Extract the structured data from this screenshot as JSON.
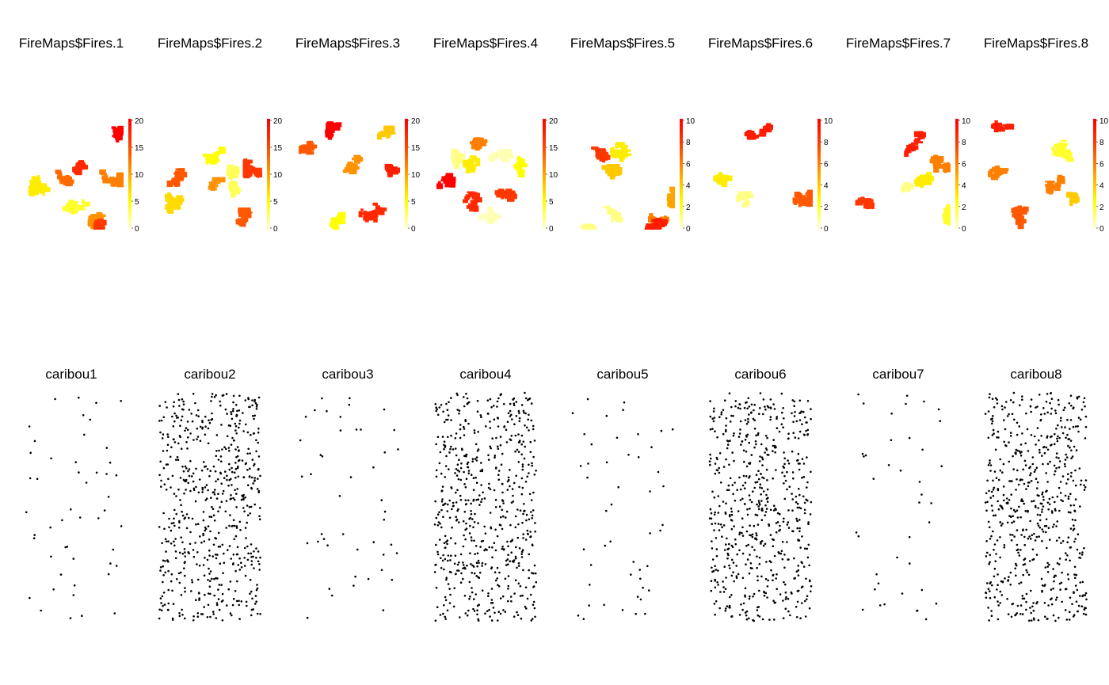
{
  "fire_maps": {
    "titles": [
      "FireMaps$Fires.1",
      "FireMaps$Fires.2",
      "FireMaps$Fires.3",
      "FireMaps$Fires.4",
      "FireMaps$Fires.5",
      "FireMaps$Fires.6",
      "FireMaps$Fires.7",
      "FireMaps$Fires.8"
    ],
    "legend_ticks": [
      [
        "0",
        "5",
        "10",
        "15",
        "20"
      ],
      [
        "0",
        "5",
        "10",
        "15",
        "20"
      ],
      [
        "0",
        "5",
        "10",
        "15",
        "20"
      ],
      [
        "0",
        "5",
        "10",
        "15",
        "20"
      ],
      [
        "0",
        "2",
        "4",
        "6",
        "8",
        "10"
      ],
      [
        "0",
        "2",
        "4",
        "6",
        "8",
        "10"
      ],
      [
        "0",
        "2",
        "4",
        "6",
        "8",
        "10"
      ],
      [
        "0",
        "2",
        "4",
        "6",
        "8",
        "10"
      ]
    ],
    "color_scale": [
      "#ffffe0",
      "#ffff00",
      "#ffa500",
      "#ff4500",
      "#ff0000"
    ]
  },
  "caribou": {
    "titles": [
      "caribou1",
      "caribou2",
      "caribou3",
      "caribou4",
      "caribou5",
      "caribou6",
      "caribou7",
      "caribou8"
    ],
    "point_color": "#000000"
  },
  "chart_data": {
    "type": "heatmap",
    "panels": [
      {
        "title": "FireMaps$Fires.1",
        "type": "heatmap",
        "zlim": [
          0,
          20
        ],
        "patches": [
          {
            "x": 0.95,
            "y": 0.9,
            "value": 20
          },
          {
            "x": 0.55,
            "y": 0.65,
            "value": 17
          },
          {
            "x": 0.35,
            "y": 0.55,
            "value": 13
          },
          {
            "x": 0.2,
            "y": 0.4,
            "value": 6
          },
          {
            "x": 0.48,
            "y": 0.18,
            "value": 4
          },
          {
            "x": 0.72,
            "y": 0.15,
            "value": 11
          },
          {
            "x": 0.78,
            "y": 0.08,
            "value": 16
          },
          {
            "x": 0.9,
            "y": 0.45,
            "value": 12
          }
        ]
      },
      {
        "title": "FireMaps$Fires.2",
        "type": "heatmap",
        "zlim": [
          0,
          20
        ],
        "patches": [
          {
            "x": 0.55,
            "y": 0.75,
            "value": 5
          },
          {
            "x": 0.7,
            "y": 0.6,
            "value": 3
          },
          {
            "x": 0.2,
            "y": 0.55,
            "value": 14
          },
          {
            "x": 0.18,
            "y": 0.3,
            "value": 7
          },
          {
            "x": 0.55,
            "y": 0.38,
            "value": 11
          },
          {
            "x": 0.68,
            "y": 0.35,
            "value": 3
          },
          {
            "x": 0.8,
            "y": 0.1,
            "value": 14
          },
          {
            "x": 0.95,
            "y": 0.55,
            "value": 16
          }
        ]
      },
      {
        "title": "FireMaps$Fires.3",
        "type": "heatmap",
        "zlim": [
          0,
          20
        ],
        "patches": [
          {
            "x": 0.1,
            "y": 0.82,
            "value": 14
          },
          {
            "x": 0.35,
            "y": 0.95,
            "value": 20
          },
          {
            "x": 0.8,
            "y": 0.85,
            "value": 8
          },
          {
            "x": 0.5,
            "y": 0.65,
            "value": 11
          },
          {
            "x": 0.85,
            "y": 0.58,
            "value": 18
          },
          {
            "x": 0.72,
            "y": 0.22,
            "value": 17
          },
          {
            "x": 0.35,
            "y": 0.1,
            "value": 5
          }
        ]
      },
      {
        "title": "FireMaps$Fires.4",
        "type": "heatmap",
        "zlim": [
          0,
          20
        ],
        "patches": [
          {
            "x": 0.35,
            "y": 0.85,
            "value": 12
          },
          {
            "x": 0.15,
            "y": 0.65,
            "value": 2
          },
          {
            "x": 0.4,
            "y": 0.65,
            "value": 6
          },
          {
            "x": 0.85,
            "y": 0.62,
            "value": 5
          },
          {
            "x": 0.55,
            "y": 0.7,
            "value": 1
          },
          {
            "x": 0.12,
            "y": 0.45,
            "value": 20
          },
          {
            "x": 0.35,
            "y": 0.25,
            "value": 17
          },
          {
            "x": 0.7,
            "y": 0.35,
            "value": 16
          },
          {
            "x": 0.55,
            "y": 0.2,
            "value": 1
          }
        ]
      },
      {
        "title": "FireMaps$Fires.5",
        "type": "heatmap",
        "zlim": [
          0,
          10
        ],
        "patches": [
          {
            "x": 0.15,
            "y": 0.75,
            "value": 8
          },
          {
            "x": 0.5,
            "y": 0.7,
            "value": 3
          },
          {
            "x": 0.35,
            "y": 0.5,
            "value": 4
          },
          {
            "x": 0.9,
            "y": 0.35,
            "value": 5
          },
          {
            "x": 0.3,
            "y": 0.2,
            "value": 1
          },
          {
            "x": 0.75,
            "y": 0.1,
            "value": 6
          },
          {
            "x": 0.8,
            "y": 0.05,
            "value": 9
          },
          {
            "x": 0.05,
            "y": 0.05,
            "value": 1
          }
        ]
      },
      {
        "title": "FireMaps$Fires.6",
        "type": "heatmap",
        "zlim": [
          0,
          10
        ],
        "patches": [
          {
            "x": 0.4,
            "y": 0.9,
            "value": 9
          },
          {
            "x": 0.1,
            "y": 0.5,
            "value": 3
          },
          {
            "x": 0.85,
            "y": 0.35,
            "value": 7
          },
          {
            "x": 0.35,
            "y": 0.25,
            "value": 1
          }
        ]
      },
      {
        "title": "FireMaps$Fires.7",
        "type": "heatmap",
        "zlim": [
          0,
          10
        ],
        "patches": [
          {
            "x": 0.62,
            "y": 0.8,
            "value": 9
          },
          {
            "x": 0.2,
            "y": 0.2,
            "value": 8
          },
          {
            "x": 0.85,
            "y": 0.6,
            "value": 6
          },
          {
            "x": 0.68,
            "y": 0.5,
            "value": 3
          },
          {
            "x": 0.95,
            "y": 0.15,
            "value": 2
          },
          {
            "x": 0.55,
            "y": 0.45,
            "value": 1
          }
        ]
      },
      {
        "title": "FireMaps$Fires.8",
        "type": "heatmap",
        "zlim": [
          0,
          10
        ],
        "patches": [
          {
            "x": 0.65,
            "y": 0.72,
            "value": 2
          },
          {
            "x": 0.6,
            "y": 0.4,
            "value": 6
          },
          {
            "x": 0.25,
            "y": 0.12,
            "value": 7
          },
          {
            "x": 0.85,
            "y": 0.35,
            "value": 4
          },
          {
            "x": 0.15,
            "y": 0.55,
            "value": 6
          },
          {
            "x": 0.05,
            "y": 0.95,
            "value": 9
          }
        ]
      },
      {
        "title": "caribou1",
        "type": "scatter",
        "n": 49,
        "xlim": [
          0,
          1
        ],
        "ylim": [
          0,
          1
        ]
      },
      {
        "title": "caribou2",
        "type": "scatter",
        "n": 600,
        "xlim": [
          0,
          1
        ],
        "ylim": [
          0,
          1
        ]
      },
      {
        "title": "caribou3",
        "type": "scatter",
        "n": 45,
        "xlim": [
          0,
          1
        ],
        "ylim": [
          0,
          1
        ]
      },
      {
        "title": "caribou4",
        "type": "scatter",
        "n": 600,
        "xlim": [
          0,
          1
        ],
        "ylim": [
          0,
          1
        ]
      },
      {
        "title": "caribou5",
        "type": "scatter",
        "n": 48,
        "xlim": [
          0,
          1
        ],
        "ylim": [
          0,
          1
        ]
      },
      {
        "title": "caribou6",
        "type": "scatter",
        "n": 600,
        "xlim": [
          0,
          1
        ],
        "ylim": [
          0,
          1
        ]
      },
      {
        "title": "caribou7",
        "type": "scatter",
        "n": 40,
        "xlim": [
          0,
          1
        ],
        "ylim": [
          0,
          1
        ]
      },
      {
        "title": "caribou8",
        "type": "scatter",
        "n": 600,
        "xlim": [
          0,
          1
        ],
        "ylim": [
          0,
          1
        ]
      }
    ]
  }
}
